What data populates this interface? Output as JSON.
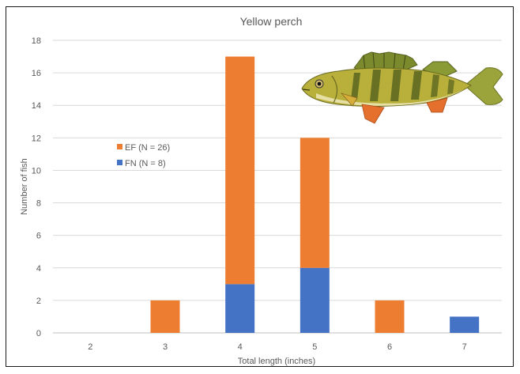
{
  "chart_data": {
    "type": "bar",
    "stacked": true,
    "title": "Yellow perch",
    "xlabel": "Total length (inches)",
    "ylabel": "Number of fish",
    "categories": [
      "2",
      "3",
      "4",
      "5",
      "6",
      "7"
    ],
    "series": [
      {
        "name": "FN (N = 8)",
        "values": [
          0,
          0,
          3,
          4,
          0,
          1
        ],
        "color": "#4472c4"
      },
      {
        "name": "EF (N = 26)",
        "values": [
          0,
          2,
          14,
          8,
          2,
          0
        ],
        "color": "#ed7d31"
      }
    ],
    "ylim": [
      0,
      18
    ],
    "yticks": [
      0,
      2,
      4,
      6,
      8,
      10,
      12,
      14,
      16,
      18
    ],
    "grid": true,
    "legend_position": "left",
    "legend_order": [
      "EF (N = 26)",
      "FN (N = 8)"
    ],
    "image": "yellow-perch-fish-illustration"
  }
}
